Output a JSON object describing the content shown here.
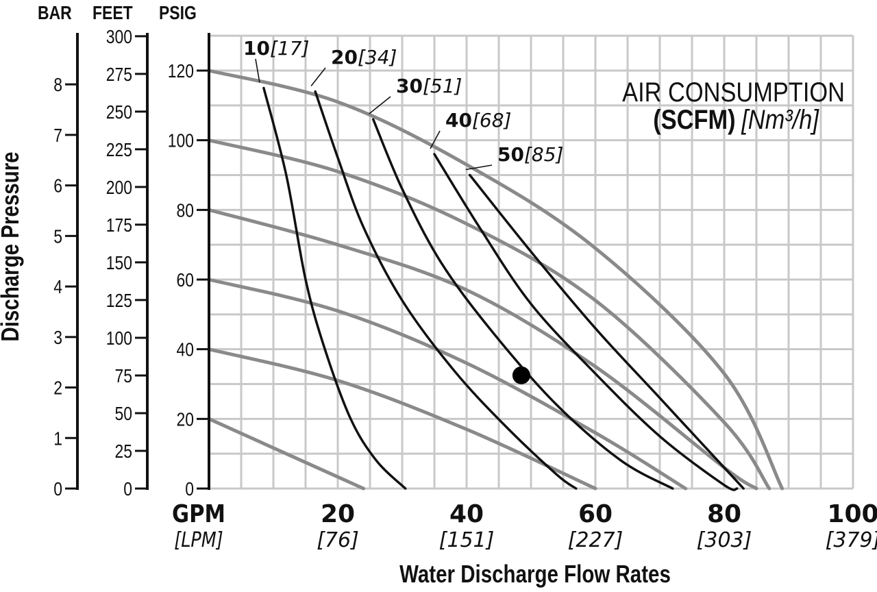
{
  "chart_data": {
    "type": "line",
    "title": "",
    "xlabel": "Water Discharge Flow Rates",
    "ylabel": "Discharge Pressure",
    "xlim": [
      0,
      100
    ],
    "ylim": [
      0,
      130
    ],
    "grid": true,
    "x_unit_primary": "GPM",
    "x_unit_secondary": "[LPM]",
    "x_ticks": [
      {
        "value": 20,
        "label": "20",
        "sub": "[76]"
      },
      {
        "value": 40,
        "label": "40",
        "sub": "[151]"
      },
      {
        "value": 60,
        "label": "60",
        "sub": "[227]"
      },
      {
        "value": 80,
        "label": "80",
        "sub": "[303]"
      },
      {
        "value": 100,
        "label": "100",
        "sub": "[379]"
      }
    ],
    "y_axes": [
      {
        "header": "PSIG",
        "ticks": [
          0,
          20,
          40,
          60,
          80,
          100,
          120
        ]
      },
      {
        "header": "FEET",
        "ticks": [
          0,
          25,
          50,
          75,
          100,
          125,
          150,
          175,
          200,
          225,
          250,
          275,
          300
        ]
      },
      {
        "header": "BAR",
        "ticks": [
          0,
          1,
          2,
          3,
          4,
          5,
          6,
          7,
          8
        ]
      }
    ],
    "legend": {
      "title": "AIR CONSUMPTION",
      "unit_bold": "(SCFM)",
      "unit_italic": "[Nm³/h]",
      "position": "top-right"
    },
    "performance_curves": [
      {
        "x": [
          0,
          24
        ],
        "y": [
          20,
          0
        ]
      },
      {
        "x": [
          0,
          20,
          40,
          60
        ],
        "y": [
          40,
          31,
          17,
          0
        ]
      },
      {
        "x": [
          0,
          20,
          40,
          60,
          74
        ],
        "y": [
          60,
          51,
          36,
          16,
          0
        ]
      },
      {
        "x": [
          0,
          20,
          40,
          60,
          80,
          85
        ],
        "y": [
          80,
          70,
          57,
          35,
          6,
          0
        ]
      },
      {
        "x": [
          0,
          20,
          40,
          60,
          80,
          87
        ],
        "y": [
          100,
          91,
          76,
          54,
          19,
          0
        ]
      },
      {
        "x": [
          0,
          20,
          40,
          60,
          80,
          89
        ],
        "y": [
          120,
          111,
          93,
          69,
          33,
          0
        ]
      }
    ],
    "air_curves": [
      {
        "scfm": "10",
        "nm3h": "[17]",
        "x": [
          8.5,
          12,
          15,
          18,
          22,
          26,
          30.5
        ],
        "y": [
          115,
          90,
          60,
          40,
          20,
          8,
          0
        ]
      },
      {
        "scfm": "20",
        "nm3h": "[34]",
        "x": [
          16.5,
          20,
          24,
          30,
          38,
          46,
          54,
          57
        ],
        "y": [
          114,
          95,
          75,
          54,
          34,
          18,
          4,
          0
        ]
      },
      {
        "scfm": "30",
        "nm3h": "[51]",
        "x": [
          25.5,
          30,
          36,
          44,
          54,
          64,
          72
        ],
        "y": [
          106,
          86,
          65,
          45,
          24,
          8,
          0
        ]
      },
      {
        "scfm": "40",
        "nm3h": "[68]",
        "x": [
          35,
          42,
          50,
          60,
          70,
          80,
          82
        ],
        "y": [
          96,
          75,
          53,
          33,
          15,
          1,
          0
        ]
      },
      {
        "scfm": "50",
        "nm3h": "[85]",
        "x": [
          40.5,
          50,
          60,
          70,
          80,
          83
        ],
        "y": [
          90,
          68,
          46,
          26,
          6,
          0
        ]
      }
    ],
    "marker_point": {
      "x": 48.5,
      "y": 32.5
    }
  }
}
